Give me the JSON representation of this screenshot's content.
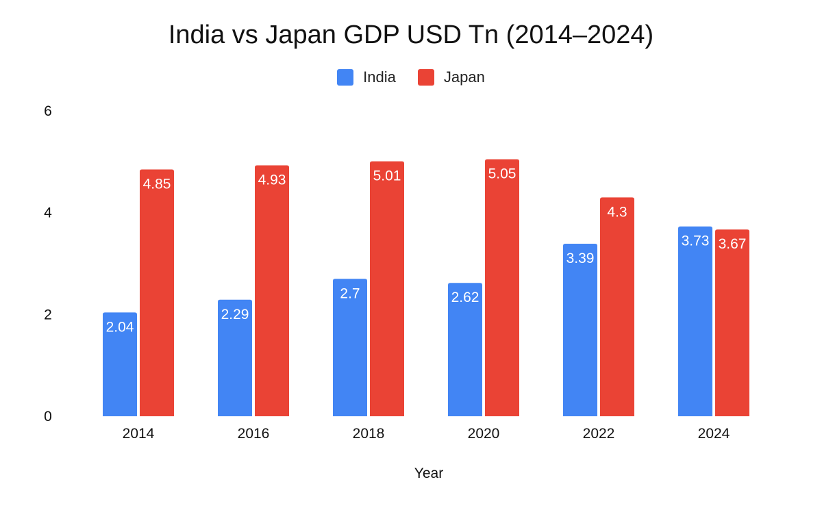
{
  "chart_data": {
    "type": "bar",
    "title": "India vs Japan GDP USD Tn (2014–2024)",
    "xlabel": "Year",
    "ylabel": "",
    "categories": [
      "2014",
      "2016",
      "2018",
      "2020",
      "2022",
      "2024"
    ],
    "series": [
      {
        "name": "India",
        "color": "#4285F4",
        "values": [
          2.04,
          2.29,
          2.7,
          2.62,
          3.39,
          3.73
        ]
      },
      {
        "name": "Japan",
        "color": "#EA4335",
        "values": [
          4.85,
          4.93,
          5.01,
          5.05,
          4.3,
          3.67
        ]
      }
    ],
    "ylim": [
      0,
      6
    ],
    "yticks": [
      0,
      2,
      4,
      6
    ],
    "grid": false,
    "legend_position": "top-center",
    "data_labels": true
  }
}
